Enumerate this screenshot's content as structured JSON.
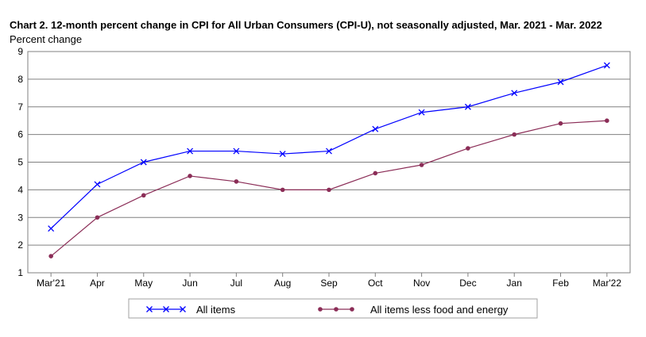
{
  "chart_data": {
    "type": "line",
    "title": "Chart 2. 12-month percent change in CPI for All Urban Consumers (CPI-U), not seasonally adjusted, Mar. 2021 - Mar. 2022",
    "ylabel": "Percent change",
    "xlabel": "",
    "ylim": [
      1,
      9
    ],
    "yticks": [
      "1",
      "2",
      "3",
      "4",
      "5",
      "6",
      "7",
      "8",
      "9"
    ],
    "categories": [
      "Mar'21",
      "Apr",
      "May",
      "Jun",
      "Jul",
      "Aug",
      "Sep",
      "Oct",
      "Nov",
      "Dec",
      "Jan",
      "Feb",
      "Mar'22"
    ],
    "grid": true,
    "legend_position": "bottom",
    "series": [
      {
        "name": "All items",
        "marker": "x",
        "color": "#0000ff",
        "values": [
          2.6,
          4.2,
          5.0,
          5.4,
          5.4,
          5.3,
          5.4,
          6.2,
          6.8,
          7.0,
          7.5,
          7.9,
          8.5
        ]
      },
      {
        "name": "All items less food and energy",
        "marker": "dot",
        "color": "#8b2d57",
        "values": [
          1.6,
          3.0,
          3.8,
          4.5,
          4.3,
          4.0,
          4.0,
          4.6,
          4.9,
          5.5,
          6.0,
          6.4,
          6.5
        ]
      }
    ]
  }
}
